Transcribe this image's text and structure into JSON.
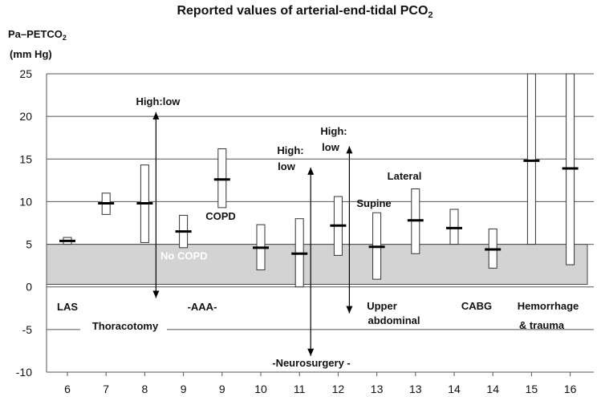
{
  "chart_data": {
    "type": "bar",
    "title": "Reported values of arterial-end-tidal PCO",
    "title_subscript": "2",
    "ylabel_line1": "Pa–PETCO",
    "ylabel_subscript": "2",
    "ylabel_line2": "(mm Hg)",
    "ylim": [
      -10,
      25
    ],
    "yticks": [
      "25",
      "20",
      "15",
      "10",
      "5",
      "0",
      "-5",
      "-10"
    ],
    "grid": true,
    "categories": [
      "6",
      "7",
      "8",
      "9",
      "9",
      "10",
      "11",
      "12",
      "13",
      "13",
      "14",
      "14",
      "15",
      "16"
    ],
    "ranges": [
      {
        "low": 5.0,
        "high": 5.8,
        "mean": 5.4
      },
      {
        "low": 8.5,
        "high": 11.0,
        "mean": 9.8
      },
      {
        "low": 5.2,
        "high": 14.3,
        "mean": 9.8
      },
      {
        "low": 4.6,
        "high": 8.4,
        "mean": 6.5
      },
      {
        "low": 9.3,
        "high": 16.2,
        "mean": 12.6
      },
      {
        "low": 2.0,
        "high": 7.3,
        "mean": 4.6
      },
      {
        "low": 0.0,
        "high": 8.0,
        "mean": 3.9
      },
      {
        "low": 3.7,
        "high": 10.6,
        "mean": 7.2
      },
      {
        "low": 0.9,
        "high": 8.7,
        "mean": 4.7
      },
      {
        "low": 3.9,
        "high": 11.5,
        "mean": 7.8
      },
      {
        "low": 5.0,
        "high": 9.1,
        "mean": 6.9
      },
      {
        "low": 2.2,
        "high": 6.8,
        "mean": 4.4
      },
      {
        "low": 5.0,
        "high": 25.0,
        "mean": 14.8
      },
      {
        "low": 2.6,
        "high": 25.0,
        "mean": 13.9
      }
    ],
    "shaded_band": {
      "low": 0.3,
      "high": 5.0,
      "label": "No COPD"
    },
    "double_arrows": [
      {
        "index": 2,
        "low": -1.3,
        "high": 20.5
      },
      {
        "index": 6,
        "low": -8.1,
        "high": 14.0
      },
      {
        "index": 7,
        "low": -3.1,
        "high": 16.5
      }
    ],
    "annotations": {
      "high_low_1": "High:low",
      "high_low_2a": "High:",
      "high_low_2b": "low",
      "high_low_3a": "High:",
      "high_low_3b": "low",
      "copd": "COPD",
      "lateral": "Lateral",
      "supine": "Supine",
      "las": "LAS",
      "thoracotomy": "Thoracotomy",
      "aaa": "-AAA-",
      "upper_abdominal_1": "Upper",
      "upper_abdominal_2": "abdominal",
      "cabg": "CABG",
      "hemorrhage_1": "Hemorrhage",
      "hemorrhage_2": "& trauma",
      "neurosurgery": "-Neurosurgery -"
    }
  }
}
